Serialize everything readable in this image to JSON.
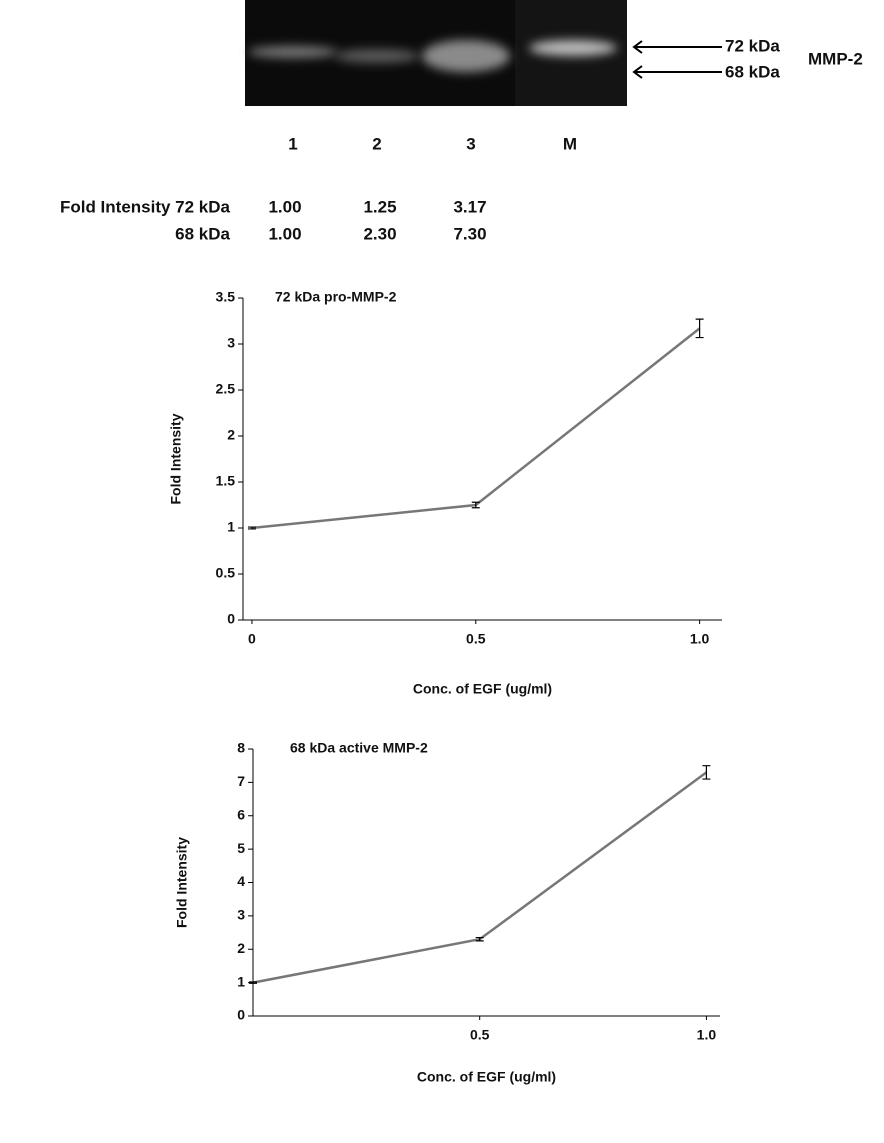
{
  "gel": {
    "lanes": [
      "1",
      "2",
      "3",
      "M"
    ],
    "bands": [
      "72 kDa",
      "68 kDa"
    ],
    "protein": "MMP-2"
  },
  "table": {
    "rows": [
      [
        "Fold Intensity 72 kDa",
        "1.00",
        "1.25",
        "3.17"
      ],
      [
        "68 kDa",
        "1.00",
        "2.30",
        "7.30"
      ]
    ]
  },
  "chart_data": [
    {
      "type": "line",
      "title": "72 kDa pro-MMP-2",
      "x_label": "Conc. of EGF (ug/ml)",
      "y_label": "Fold Intensity",
      "x": [
        0,
        0.5,
        1
      ],
      "series": [
        {
          "name": "72 kDa pro-MMP-2",
          "color": "#777777",
          "values": [
            1.0,
            1.25,
            3.17
          ],
          "errors": [
            0.01,
            0.03,
            0.1
          ]
        }
      ],
      "xlim": [
        -0.02,
        1.05
      ],
      "xticks": [
        0,
        0.5,
        {
          "value": 1,
          "label": "1.0"
        }
      ],
      "ylim": [
        0,
        3.5
      ],
      "yticks": [
        0,
        0.5,
        1,
        1.5,
        2,
        2.5,
        3,
        3.5
      ]
    },
    {
      "type": "line",
      "title": "68 kDa active MMP-2",
      "x_label": "Conc. of EGF (ug/ml)",
      "y_label": "Fold Intensity",
      "x": [
        0,
        0.5,
        1
      ],
      "series": [
        {
          "name": "68 kDa active MMP-2",
          "color": "#777777",
          "values": [
            1.0,
            2.3,
            7.3
          ],
          "errors": [
            0.02,
            0.05,
            0.2
          ]
        }
      ],
      "xlim": [
        0,
        1.03
      ],
      "xticks": [
        0.5,
        {
          "value": 1,
          "label": "1.0"
        }
      ],
      "ylim": [
        0,
        8
      ],
      "yticks": [
        0,
        1,
        2,
        3,
        4,
        5,
        6,
        7,
        8
      ]
    }
  ]
}
